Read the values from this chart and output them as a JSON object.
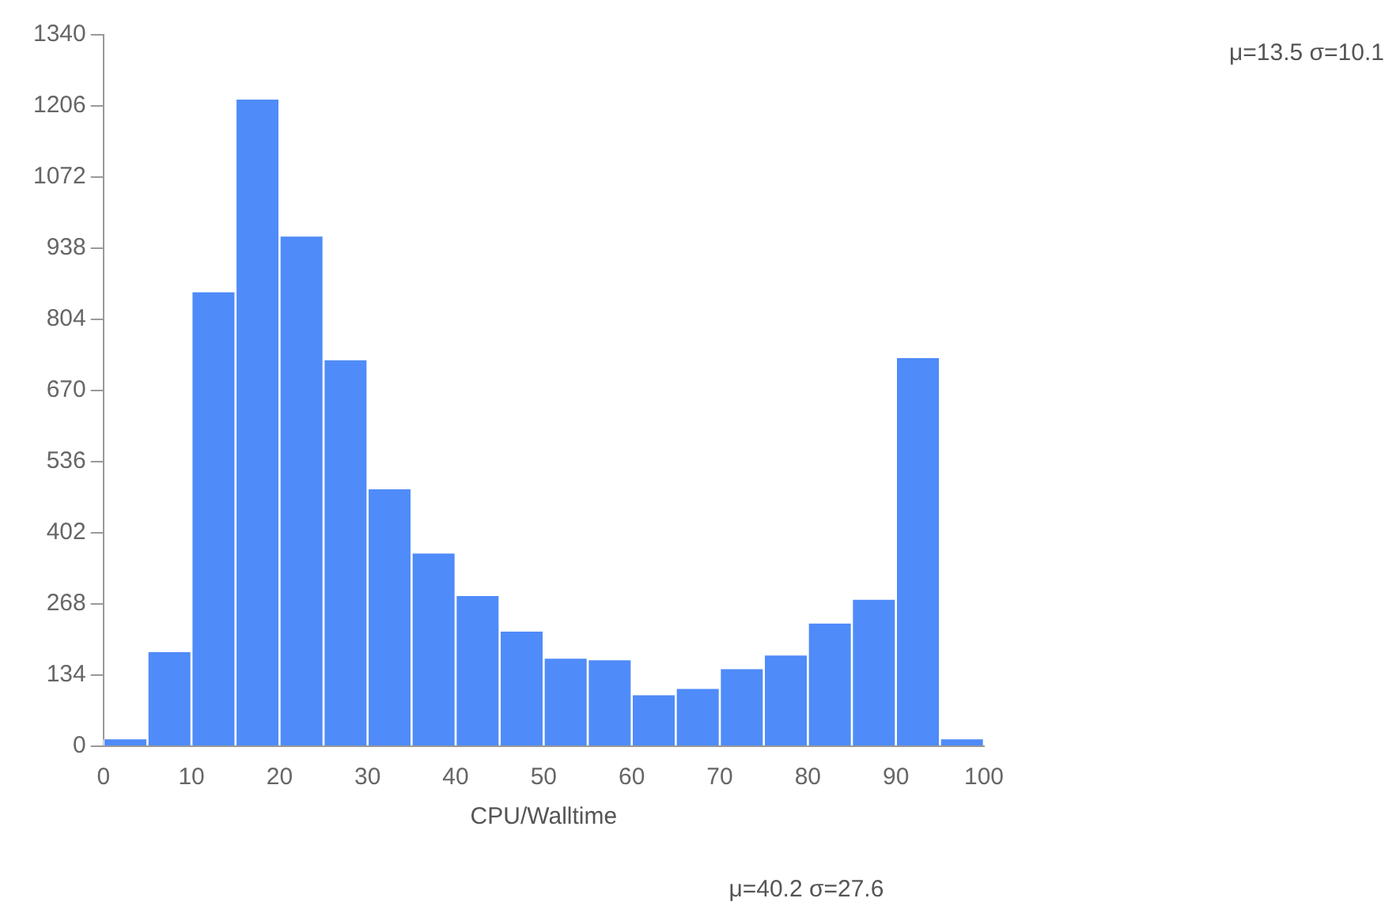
{
  "chart_data": {
    "type": "histogram",
    "xlabel": "CPU/Walltime",
    "bins": [
      0,
      5,
      10,
      15,
      20,
      25,
      30,
      35,
      40,
      45,
      50,
      55,
      60,
      65,
      70,
      75,
      80,
      85,
      90,
      95,
      100
    ],
    "values": [
      13,
      177,
      855,
      1218,
      960,
      727,
      484,
      363,
      283,
      216,
      165,
      162,
      96,
      108,
      145,
      171,
      231,
      276,
      731,
      13
    ],
    "color": "#4f8bf9",
    "xlim": [
      0,
      100
    ],
    "xticks": [
      0,
      10,
      20,
      30,
      40,
      50,
      60,
      70,
      80,
      90,
      100
    ],
    "ylim": [
      0,
      1340
    ],
    "yticks": [
      0,
      134,
      268,
      402,
      536,
      670,
      804,
      938,
      1072,
      1206,
      1340
    ],
    "grid": false,
    "legend": false,
    "annotations": [
      "μ=13.5 σ=10.1",
      "μ=40.2 σ=27.6"
    ]
  }
}
